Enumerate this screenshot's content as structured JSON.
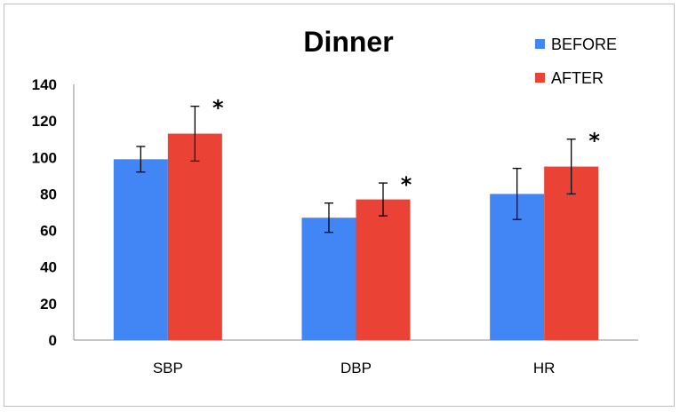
{
  "chart_data": {
    "type": "bar",
    "title": "Dinner",
    "categories": [
      "SBP",
      "DBP",
      "HR"
    ],
    "series": [
      {
        "name": "BEFORE",
        "color": "#4285f4",
        "values": [
          99,
          67,
          80
        ],
        "error": [
          7,
          8,
          14
        ]
      },
      {
        "name": "AFTER",
        "color": "#ea4335",
        "values": [
          113,
          77,
          95
        ],
        "error": [
          15,
          9,
          15
        ]
      }
    ],
    "annotations": [
      "*",
      "*",
      "*"
    ],
    "y_ticks": [
      "0",
      "20",
      "40",
      "60",
      "80",
      "100",
      "120",
      "140"
    ],
    "ylim": [
      0,
      140
    ],
    "grid": false,
    "legend_position": "top-right",
    "xlabel": "",
    "ylabel": ""
  }
}
